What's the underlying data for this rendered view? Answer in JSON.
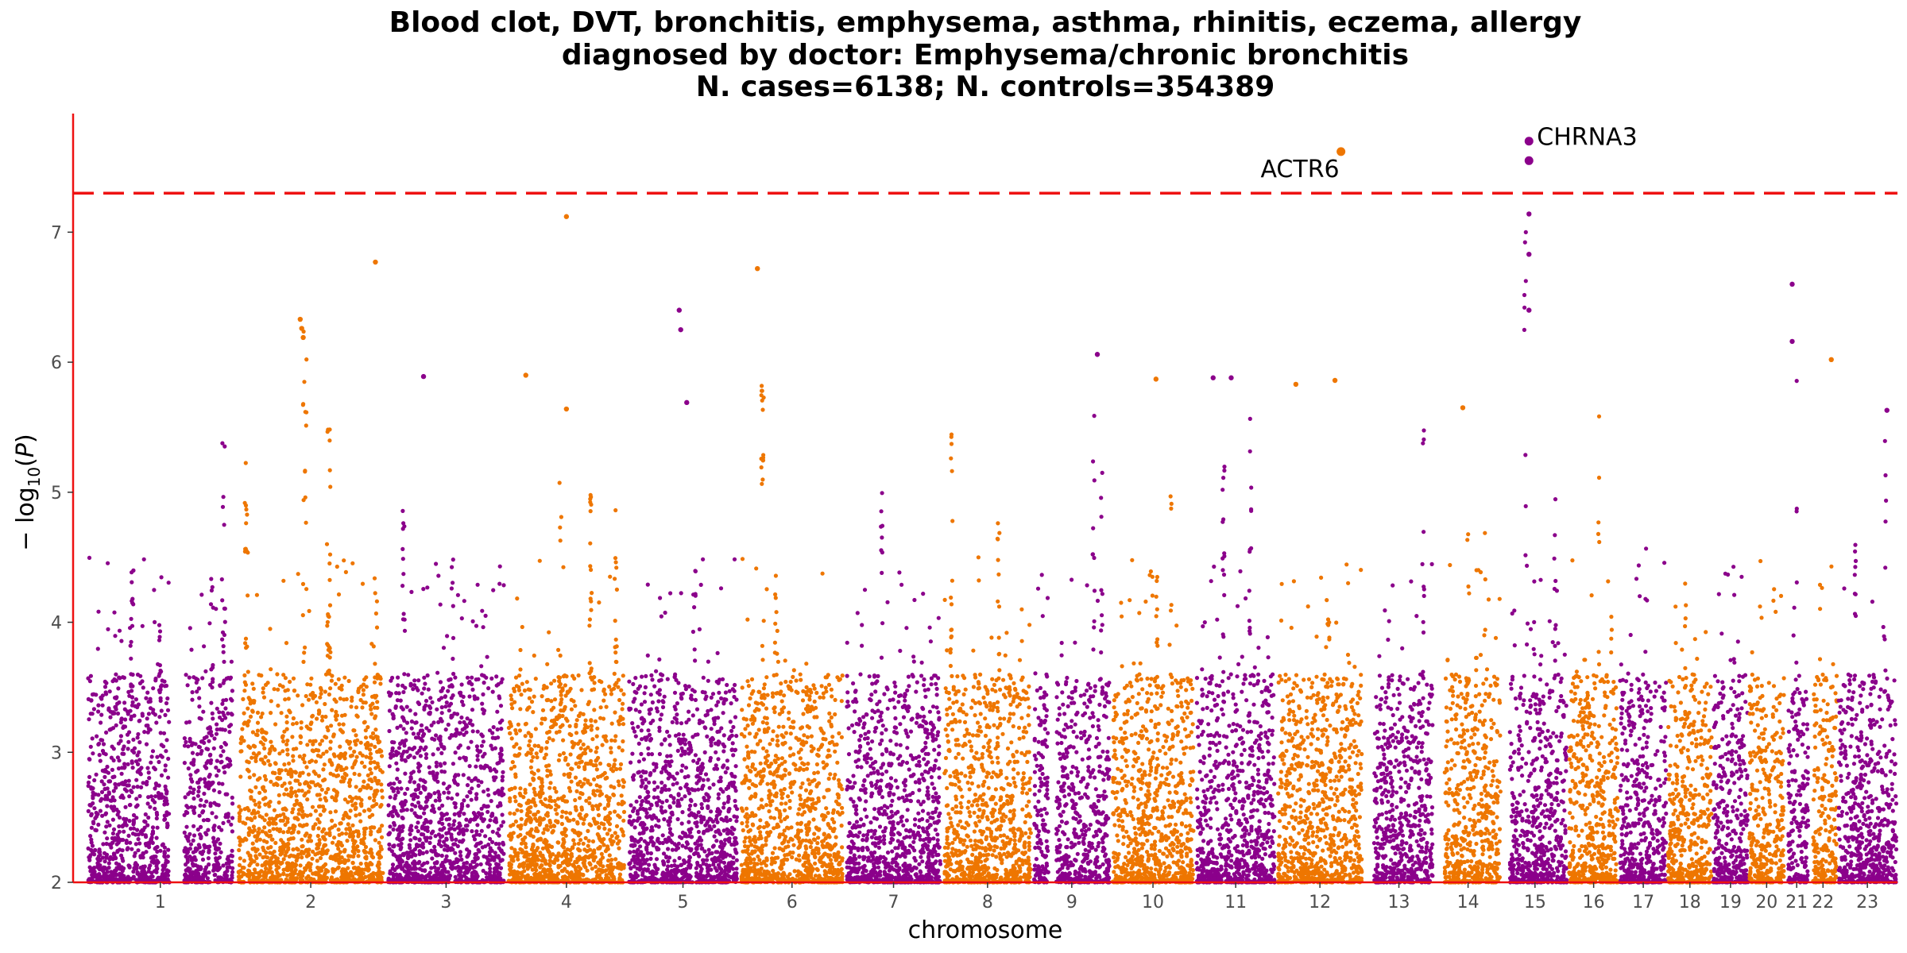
{
  "chart_data": {
    "type": "scatter",
    "subtype": "manhattan",
    "title_lines": [
      "Blood clot, DVT, bronchitis, emphysema, asthma, rhinitis, eczema, allergy",
      "diagnosed by doctor: Emphysema/chronic bronchitis",
      "N. cases=6138; N. controls=354389"
    ],
    "xlabel": "chromosome",
    "ylabel": "− log10(P)",
    "ylim": [
      2,
      7.9
    ],
    "yticks": [
      2,
      3,
      4,
      5,
      6,
      7
    ],
    "significance_threshold": 7.3,
    "threshold_color": "#ee1111",
    "axis_color": "#ee1111",
    "colors": [
      "#8b008b",
      "#ee7600"
    ],
    "chromosomes": [
      {
        "label": "1",
        "start": 0,
        "end": 1.0,
        "gaps": [
          [
            0.56,
            0.66
          ]
        ],
        "peak": [
          [
            0.31,
            4.4
          ],
          [
            0.5,
            4.0
          ],
          [
            0.84,
            4.6
          ],
          [
            0.92,
            5.4
          ]
        ]
      },
      {
        "label": "2",
        "start": 1.0,
        "end": 2.0,
        "gaps": [],
        "peak": [
          [
            0.07,
            5.3
          ],
          [
            0.46,
            6.3
          ],
          [
            0.62,
            5.5
          ],
          [
            0.93,
            4.6
          ]
        ]
      },
      {
        "label": "3",
        "start": 2.0,
        "end": 2.8,
        "gaps": [],
        "peak": [
          [
            0.15,
            5.0
          ],
          [
            0.55,
            4.5
          ],
          [
            0.8,
            4.7
          ]
        ]
      },
      {
        "label": "4",
        "start": 2.8,
        "end": 3.6,
        "gaps": [],
        "peak": [
          [
            0.45,
            5.2
          ],
          [
            0.7,
            5.0
          ],
          [
            0.91,
            4.9
          ]
        ]
      },
      {
        "label": "5",
        "start": 3.6,
        "end": 4.35,
        "gaps": [],
        "peak": [
          [
            0.3,
            4.3
          ],
          [
            0.6,
            4.4
          ]
        ]
      },
      {
        "label": "6",
        "start": 4.35,
        "end": 5.05,
        "gaps": [],
        "peak": [
          [
            0.22,
            5.9
          ],
          [
            0.35,
            4.4
          ]
        ]
      },
      {
        "label": "7",
        "start": 5.05,
        "end": 5.7,
        "gaps": [],
        "peak": [
          [
            0.38,
            5.0
          ],
          [
            0.7,
            4.2
          ]
        ]
      },
      {
        "label": "8",
        "start": 5.7,
        "end": 6.3,
        "gaps": [],
        "peak": [
          [
            0.1,
            6.0
          ],
          [
            0.62,
            4.9
          ]
        ]
      },
      {
        "label": "9",
        "start": 6.3,
        "end": 6.82,
        "gaps": [
          [
            0.2,
            0.3
          ]
        ],
        "peak": [
          [
            0.78,
            6.0
          ],
          [
            0.88,
            5.3
          ]
        ]
      },
      {
        "label": "10",
        "start": 6.82,
        "end": 7.38,
        "gaps": [],
        "peak": [
          [
            0.55,
            4.5
          ],
          [
            0.72,
            5.5
          ]
        ]
      },
      {
        "label": "11",
        "start": 7.38,
        "end": 7.92,
        "gaps": [],
        "peak": [
          [
            0.35,
            5.4
          ],
          [
            0.68,
            5.6
          ]
        ]
      },
      {
        "label": "12",
        "start": 7.92,
        "end": 8.5,
        "gaps": [],
        "peak": [
          [
            0.15,
            4.5
          ],
          [
            0.6,
            4.3
          ],
          [
            0.82,
            4.6
          ]
        ]
      },
      {
        "label": "13",
        "start": 8.5,
        "end": 8.97,
        "gaps": [
          [
            0.0,
            0.15
          ]
        ],
        "peak": [
          [
            0.35,
            4.1
          ],
          [
            0.85,
            5.6
          ]
        ]
      },
      {
        "label": "14",
        "start": 8.97,
        "end": 9.42,
        "gaps": [
          [
            0.0,
            0.15
          ]
        ],
        "peak": [
          [
            0.5,
            5.2
          ],
          [
            0.75,
            4.8
          ]
        ]
      },
      {
        "label": "15",
        "start": 9.42,
        "end": 9.86,
        "gaps": [
          [
            0.0,
            0.12
          ]
        ],
        "peak": [
          [
            0.35,
            7.1
          ],
          [
            0.8,
            5.0
          ]
        ]
      },
      {
        "label": "16",
        "start": 9.86,
        "end": 10.2,
        "gaps": [],
        "peak": [
          [
            0.6,
            6.1
          ],
          [
            0.85,
            4.5
          ]
        ]
      },
      {
        "label": "17",
        "start": 10.2,
        "end": 10.52,
        "gaps": [],
        "peak": [
          [
            0.55,
            4.6
          ]
        ]
      },
      {
        "label": "18",
        "start": 10.52,
        "end": 10.82,
        "gaps": [],
        "peak": [
          [
            0.4,
            4.4
          ]
        ]
      },
      {
        "label": "19",
        "start": 10.82,
        "end": 11.06,
        "gaps": [],
        "peak": [
          [
            0.6,
            4.5
          ]
        ]
      },
      {
        "label": "20",
        "start": 11.06,
        "end": 11.3,
        "gaps": [],
        "peak": [
          [
            0.7,
            4.6
          ]
        ]
      },
      {
        "label": "21",
        "start": 11.3,
        "end": 11.46,
        "gaps": [
          [
            0.0,
            0.15
          ]
        ],
        "peak": [
          [
            0.5,
            6.6
          ]
        ]
      },
      {
        "label": "22",
        "start": 11.46,
        "end": 11.65,
        "gaps": [
          [
            0.0,
            0.15
          ]
        ],
        "peak": [
          [
            0.4,
            4.5
          ]
        ]
      },
      {
        "label": "23",
        "start": 11.65,
        "end": 12.05,
        "gaps": [],
        "peak": [
          [
            0.3,
            4.6
          ],
          [
            0.8,
            5.4
          ]
        ]
      }
    ],
    "xlim": [
      -0.08,
      12.05
    ],
    "top_hits": [
      {
        "gene": "ACTR6",
        "chromosome": "12",
        "x": 8.35,
        "y": 7.62,
        "label_side": "left"
      },
      {
        "gene": "CHRNA3",
        "chromosome": "15",
        "x": 9.6,
        "y": 7.7,
        "label_side": "right"
      },
      {
        "gene": "",
        "chromosome": "15",
        "x": 9.6,
        "y": 7.55,
        "label_side": "none"
      }
    ],
    "notable_points": [
      {
        "x": 3.2,
        "y": 7.12
      },
      {
        "x": 1.93,
        "y": 6.77
      },
      {
        "x": 4.47,
        "y": 6.72
      },
      {
        "x": 11.35,
        "y": 6.6
      },
      {
        "x": 1.43,
        "y": 6.33
      },
      {
        "x": 1.44,
        "y": 6.26
      },
      {
        "x": 1.45,
        "y": 6.19
      },
      {
        "x": 3.95,
        "y": 6.4
      },
      {
        "x": 3.96,
        "y": 6.25
      },
      {
        "x": 9.6,
        "y": 6.83
      },
      {
        "x": 9.6,
        "y": 6.4
      },
      {
        "x": 9.6,
        "y": 7.14
      },
      {
        "x": 11.35,
        "y": 6.16
      },
      {
        "x": 11.61,
        "y": 6.02
      },
      {
        "x": 6.73,
        "y": 6.06
      },
      {
        "x": 2.25,
        "y": 5.89
      },
      {
        "x": 2.93,
        "y": 5.9
      },
      {
        "x": 7.12,
        "y": 5.87
      },
      {
        "x": 7.5,
        "y": 5.88
      },
      {
        "x": 7.62,
        "y": 5.88
      },
      {
        "x": 8.31,
        "y": 5.86
      },
      {
        "x": 8.05,
        "y": 5.83
      },
      {
        "x": 3.2,
        "y": 5.64
      },
      {
        "x": 11.98,
        "y": 5.63
      },
      {
        "x": 4.0,
        "y": 5.69
      },
      {
        "x": 9.16,
        "y": 5.65
      }
    ]
  }
}
